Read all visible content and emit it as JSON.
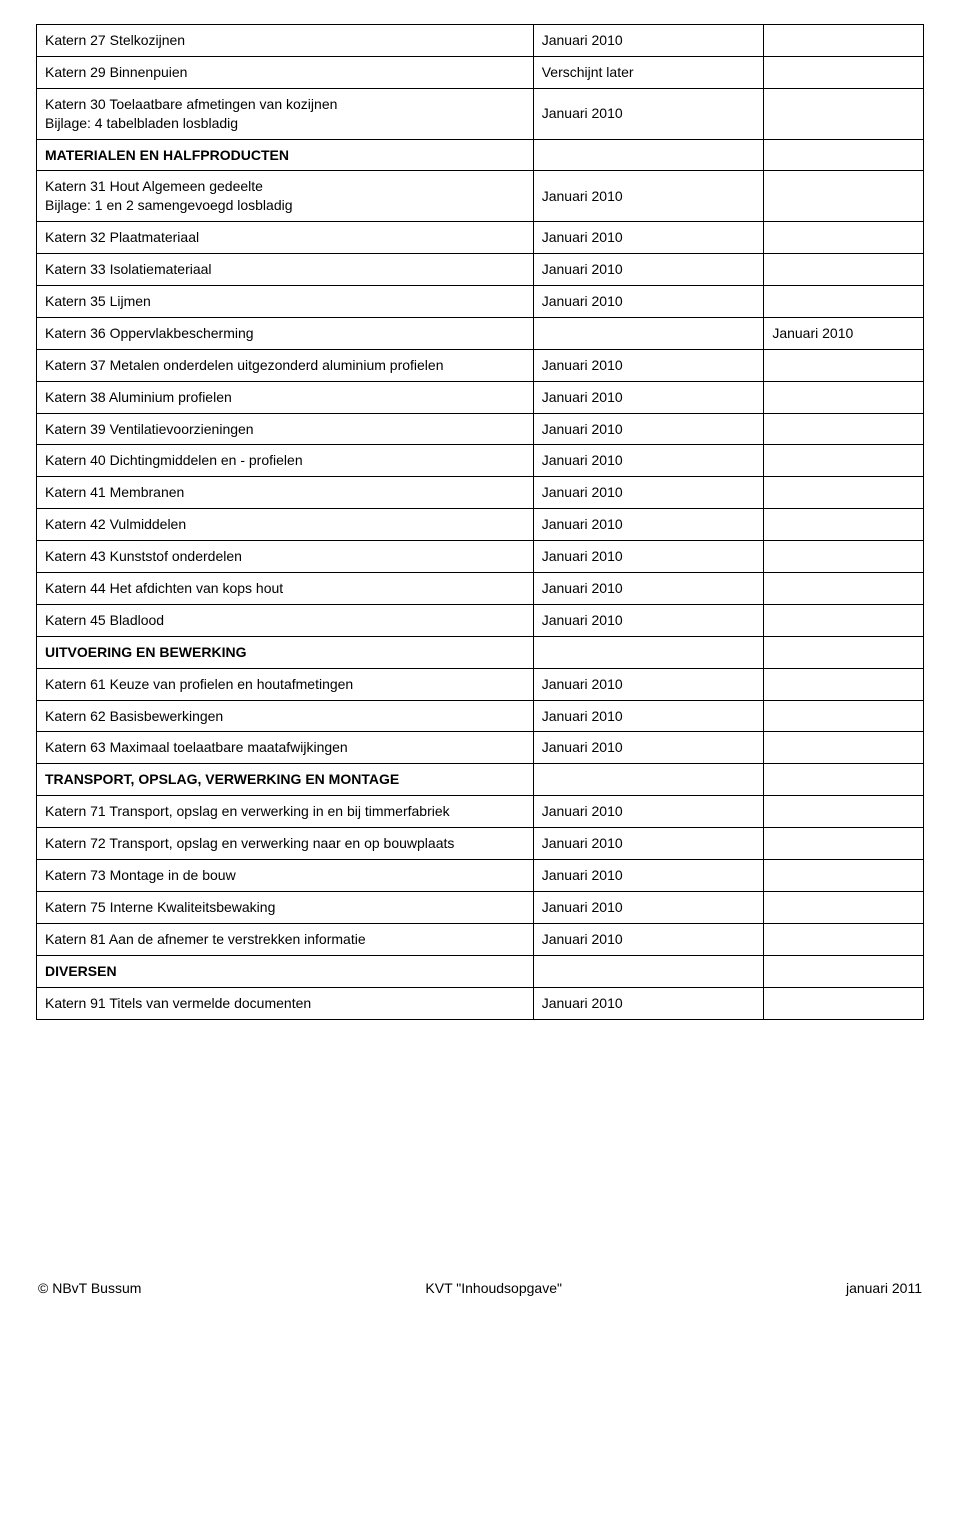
{
  "date_default": "Januari 2010",
  "rows": [
    {
      "type": "entry",
      "label": "Katern 27 Stelkozijnen",
      "c2": "Januari 2010"
    },
    {
      "type": "entry",
      "label": "Katern 29 Binnenpuien",
      "c2": "Verschijnt later"
    },
    {
      "type": "entry",
      "label": "Katern 30 Toelaatbare afmetingen van kozijnen\nBijlage: 4 tabelbladen losbladig",
      "c2": "Januari 2010"
    },
    {
      "type": "section",
      "label": "MATERIALEN EN HALFPRODUCTEN"
    },
    {
      "type": "entry",
      "label": "Katern 31 Hout Algemeen gedeelte\nBijlage: 1 en 2 samengevoegd losbladig",
      "c2": "Januari 2010"
    },
    {
      "type": "entry",
      "label": "Katern 32 Plaatmateriaal",
      "c2": "Januari 2010"
    },
    {
      "type": "entry",
      "label": "Katern 33 Isolatiemateriaal",
      "c2": "Januari 2010"
    },
    {
      "type": "entry",
      "label": "Katern 35 Lijmen",
      "c2": "Januari 2010"
    },
    {
      "type": "entry",
      "label": "Katern 36 Oppervlakbescherming",
      "c2": "",
      "c3": "Januari 2010"
    },
    {
      "type": "entry",
      "label": "Katern 37 Metalen onderdelen uitgezonderd aluminium  profielen",
      "c2": "Januari 2010"
    },
    {
      "type": "entry",
      "label": "Katern 38 Aluminium profielen",
      "c2": "Januari 2010"
    },
    {
      "type": "entry",
      "label": "Katern 39 Ventilatievoorzieningen",
      "c2": "Januari 2010"
    },
    {
      "type": "entry",
      "label": "Katern 40 Dichtingmiddelen en - profielen",
      "c2": "Januari 2010"
    },
    {
      "type": "entry",
      "label": "Katern 41 Membranen",
      "c2": "Januari 2010"
    },
    {
      "type": "entry",
      "label": "Katern 42 Vulmiddelen",
      "c2": "Januari 2010"
    },
    {
      "type": "entry",
      "label": "Katern 43 Kunststof onderdelen",
      "c2": "Januari 2010"
    },
    {
      "type": "entry",
      "label": "Katern 44 Het afdichten van kops hout",
      "c2": "Januari 2010"
    },
    {
      "type": "entry",
      "label": "Katern 45 Bladlood",
      "c2": "Januari 2010"
    },
    {
      "type": "section",
      "label": "UITVOERING EN BEWERKING"
    },
    {
      "type": "entry",
      "label": "Katern 61 Keuze van profielen en houtafmetingen",
      "c2": "Januari 2010"
    },
    {
      "type": "entry",
      "label": "Katern 62 Basisbewerkingen",
      "c2": "Januari 2010"
    },
    {
      "type": "entry",
      "label": "Katern 63 Maximaal toelaatbare maatafwijkingen",
      "c2": "Januari 2010"
    },
    {
      "type": "section",
      "label": "TRANSPORT, OPSLAG, VERWERKING EN MONTAGE"
    },
    {
      "type": "entry",
      "label": "Katern 71 Transport, opslag en verwerking in en bij timmerfabriek",
      "c2": "Januari 2010"
    },
    {
      "type": "entry",
      "label": "Katern 72 Transport, opslag en verwerking naar en op bouwplaats",
      "c2": "Januari 2010"
    },
    {
      "type": "entry",
      "label": "Katern 73 Montage in de bouw",
      "c2": "Januari 2010"
    },
    {
      "type": "entry",
      "label": "Katern 75 Interne Kwaliteitsbewaking",
      "c2": "Januari 2010"
    },
    {
      "type": "entry",
      "label": "Katern 81 Aan de afnemer te verstrekken informatie",
      "c2": "Januari 2010"
    },
    {
      "type": "section",
      "label": "DIVERSEN"
    },
    {
      "type": "entry",
      "label": "Katern 91 Titels van vermelde documenten",
      "c2": "Januari 2010"
    }
  ],
  "footer": {
    "left": "© NBvT Bussum",
    "center": "KVT \"Inhoudsopgave\"",
    "right": "januari 2011"
  }
}
